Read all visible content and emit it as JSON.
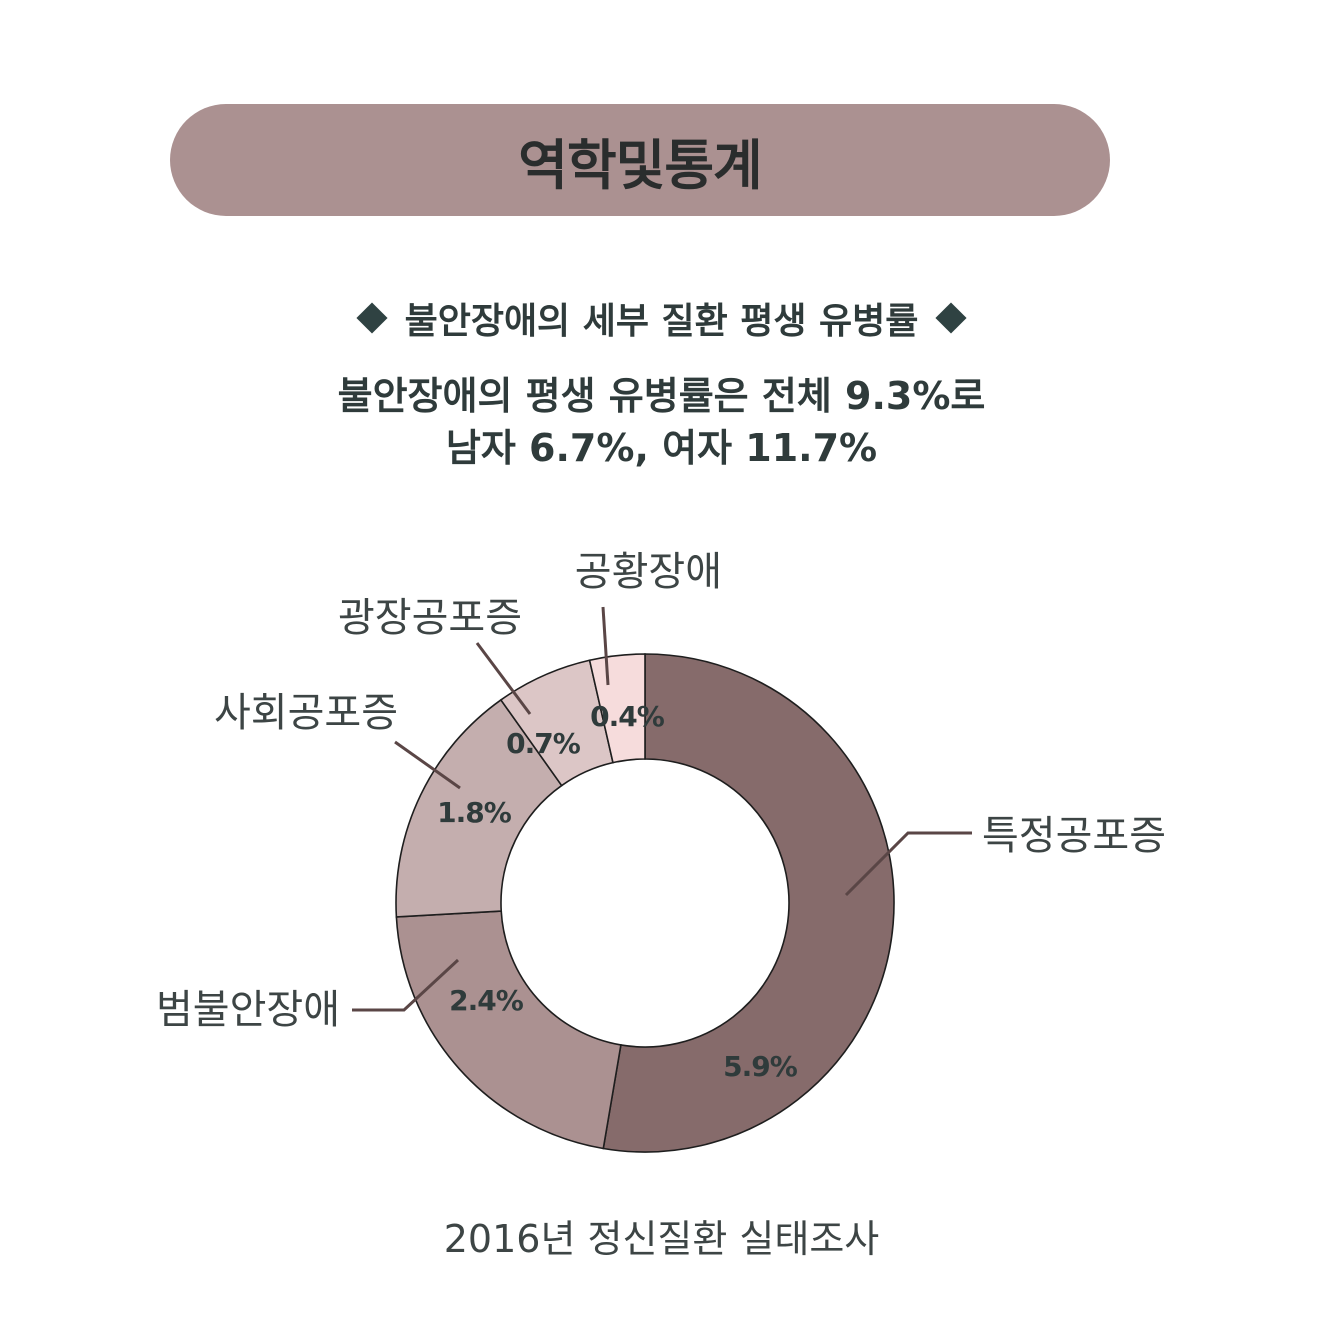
{
  "title": "역학및통계",
  "section_heading": "불안장애의 세부 질환 평생 유병률",
  "summary": {
    "line1": "불안장애의 평생 유병률은 전체 9.3%로",
    "line2": "남자 6.7%, 여자 11.7%"
  },
  "source": "2016년 정신질환 실태조사",
  "colors": {
    "banner": "#ab9191",
    "diamond": "#2f4242",
    "leader_line": "#5a4646",
    "text": "#2f3b3b"
  },
  "chart_data": {
    "type": "pie",
    "donut": true,
    "unit": "%",
    "categories": [
      "특정공포증",
      "범불안장애",
      "사회공포증",
      "광장공포증",
      "공황장애"
    ],
    "values": [
      5.9,
      2.4,
      1.8,
      0.7,
      0.4
    ],
    "value_labels": [
      "5.9%",
      "2.4%",
      "1.8%",
      "0.7%",
      "0.4%"
    ],
    "colors": [
      "#866b6b",
      "#ab9191",
      "#c4aeae",
      "#dcc6c6",
      "#f6dcdc"
    ]
  }
}
